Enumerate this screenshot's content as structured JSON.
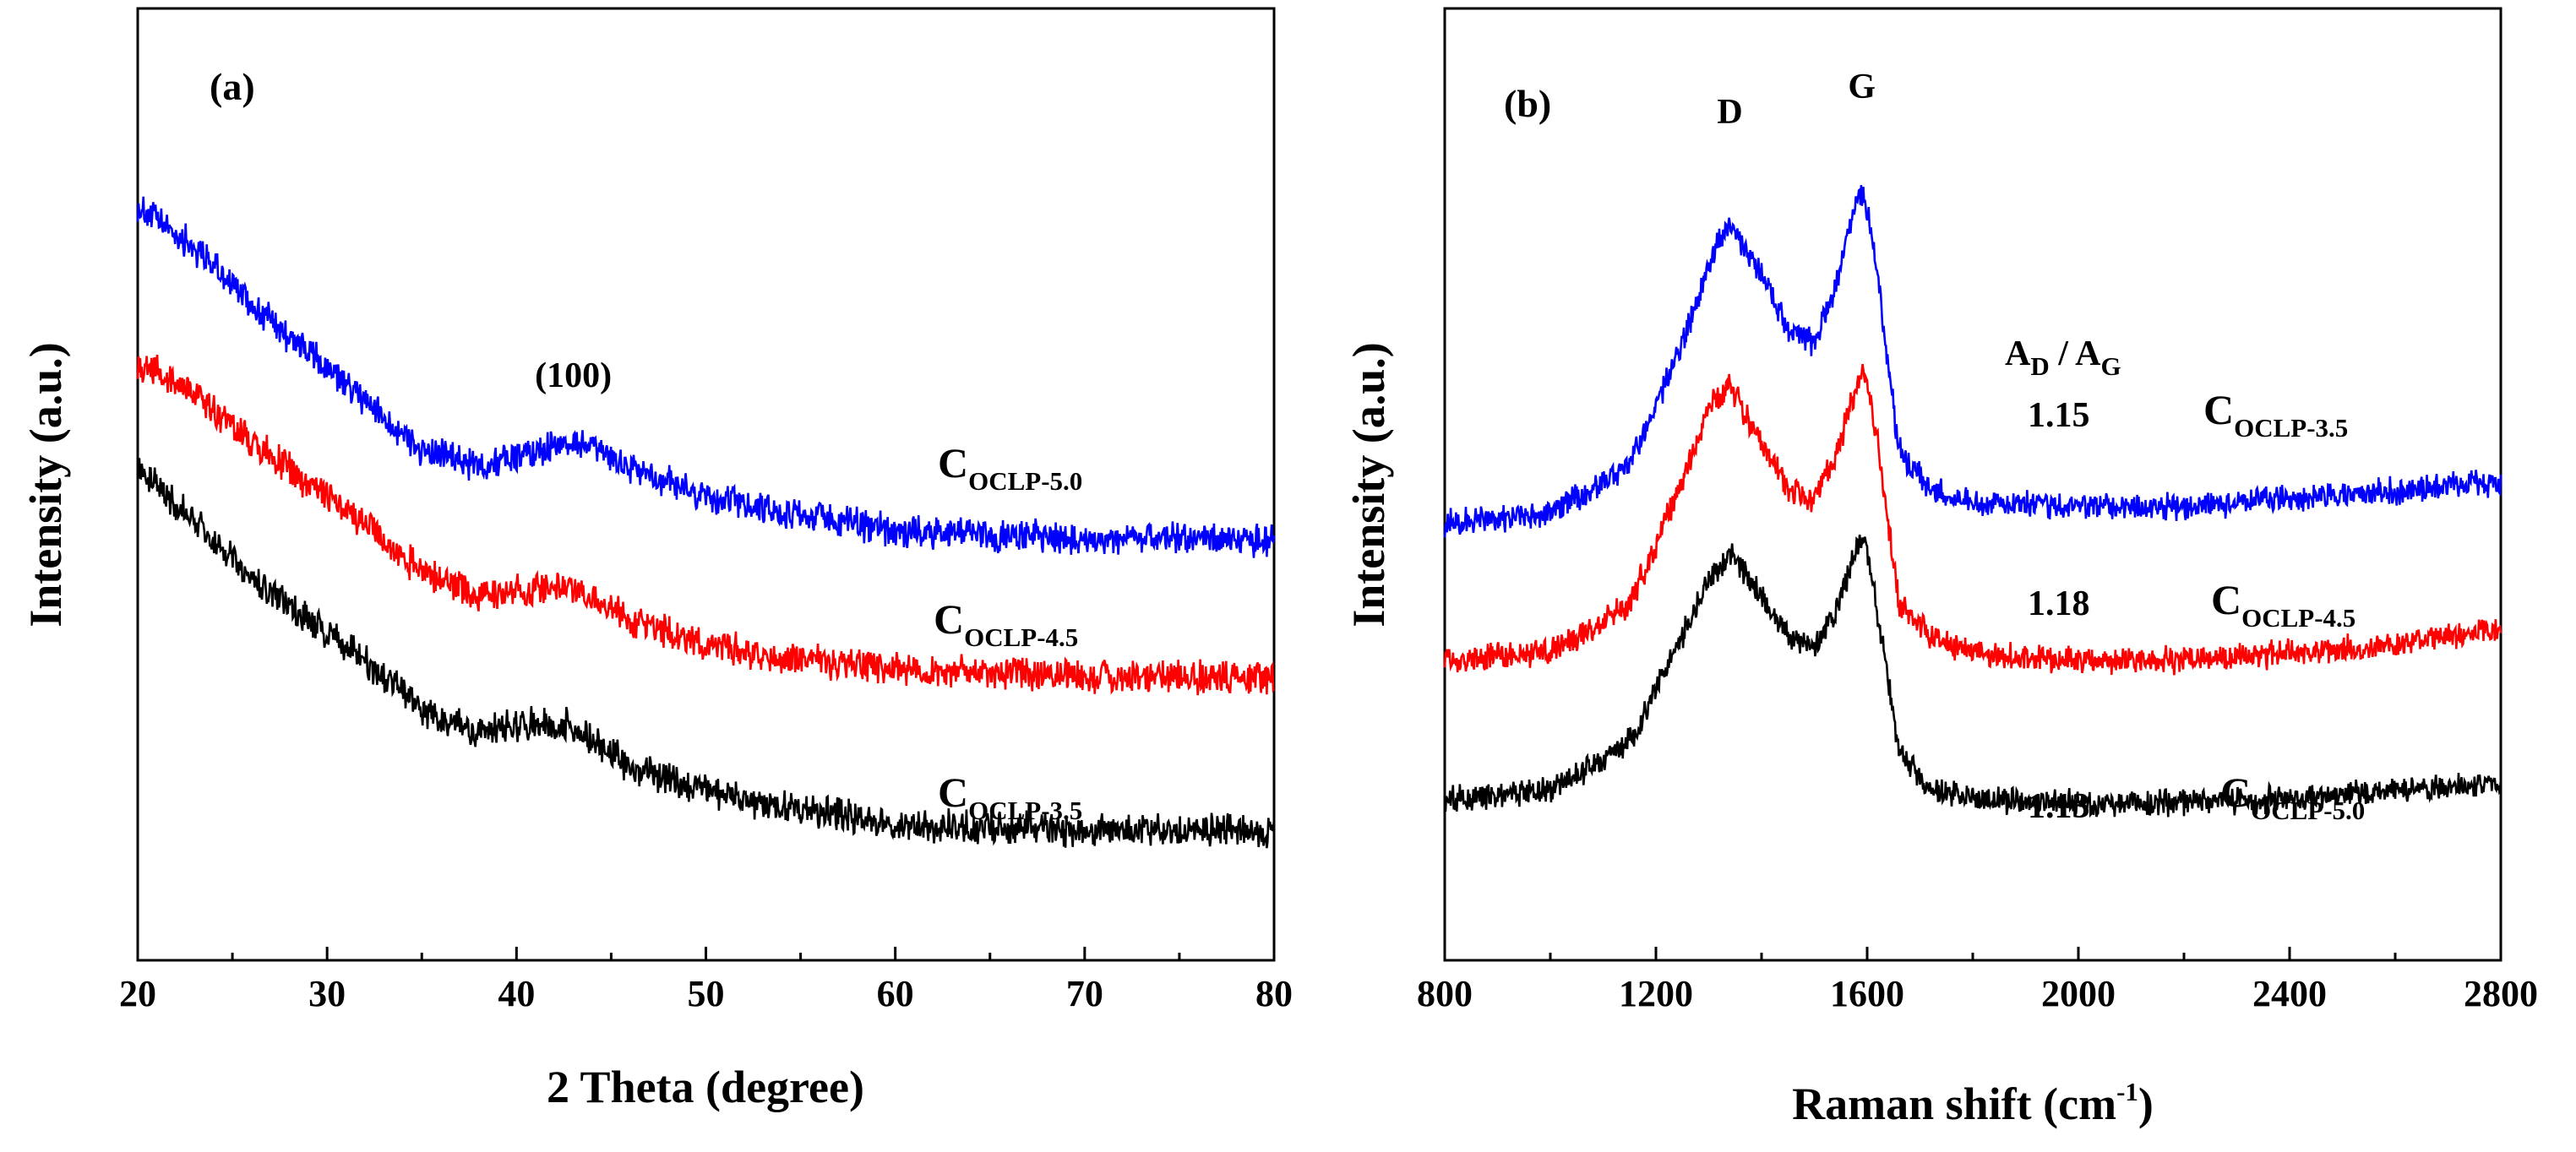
{
  "chart_data": [
    {
      "type": "line",
      "panel_label": "(a)",
      "title": "",
      "xlabel": "2 Theta (degree)",
      "ylabel": "Intensity (a.u.)",
      "xlim": [
        20,
        80
      ],
      "ylim": [
        0,
        100
      ],
      "x_ticks": [
        20,
        30,
        40,
        50,
        60,
        70,
        80
      ],
      "y_ticks_shown": false,
      "grid": false,
      "peak_annotation": {
        "text": "(100)",
        "x": 43
      },
      "series": [
        {
          "name": "C_OCLP-5.0",
          "label_main": "C",
          "label_sub": "OCLP-5.0",
          "color": "#0000ff",
          "noise": 1.6,
          "points": [
            [
              20,
              87
            ],
            [
              23,
              82
            ],
            [
              26,
              75
            ],
            [
              29,
              69
            ],
            [
              32,
              63
            ],
            [
              35,
              57
            ],
            [
              38,
              55
            ],
            [
              41,
              57
            ],
            [
              43,
              58
            ],
            [
              46,
              55
            ],
            [
              50,
              51
            ],
            [
              55,
              49
            ],
            [
              60,
              47
            ],
            [
              65,
              46.5
            ],
            [
              70,
              46
            ],
            [
              75,
              46
            ],
            [
              80,
              46
            ]
          ]
        },
        {
          "name": "C_OCLP-4.5",
          "label_main": "C",
          "label_sub": "OCLP-4.5",
          "color": "#ff0000",
          "noise": 1.6,
          "points": [
            [
              20,
              68
            ],
            [
              23,
              64
            ],
            [
              26,
              58
            ],
            [
              29,
              53
            ],
            [
              32,
              48
            ],
            [
              35,
              42
            ],
            [
              38,
              39
            ],
            [
              41,
              40
            ],
            [
              43,
              40
            ],
            [
              46,
              36
            ],
            [
              50,
              33
            ],
            [
              55,
              31
            ],
            [
              60,
              30
            ],
            [
              65,
              29.5
            ],
            [
              70,
              29
            ],
            [
              75,
              29
            ],
            [
              80,
              29
            ]
          ]
        },
        {
          "name": "C_OCLP-3.5",
          "label_main": "C",
          "label_sub": "OCLP-3.5",
          "color": "#000000",
          "noise": 1.6,
          "points": [
            [
              20,
              55
            ],
            [
              23,
              48
            ],
            [
              26,
              41
            ],
            [
              29,
              36
            ],
            [
              32,
              31
            ],
            [
              35,
              25
            ],
            [
              38,
              22
            ],
            [
              41,
              23.5
            ],
            [
              43,
              23
            ],
            [
              46,
              18
            ],
            [
              50,
              15
            ],
            [
              55,
              12.5
            ],
            [
              60,
              11
            ],
            [
              65,
              10.5
            ],
            [
              70,
              10
            ],
            [
              75,
              10
            ],
            [
              80,
              10
            ]
          ]
        }
      ]
    },
    {
      "type": "line",
      "panel_label": "(b)",
      "title": "",
      "xlabel": "Raman shift (cm",
      "xlabel_sup": "-1",
      "xlabel_end": ")",
      "ylabel": "Intensity (a.u.)",
      "xlim": [
        800,
        2800
      ],
      "ylim": [
        0,
        100
      ],
      "x_ticks": [
        800,
        1200,
        1600,
        2000,
        2400,
        2800
      ],
      "y_ticks_shown": false,
      "grid": false,
      "peak_labels": [
        {
          "text": "D",
          "x": 1340
        },
        {
          "text": "G",
          "x": 1590
        }
      ],
      "ratio_header": {
        "main_a": "A",
        "sub_a": "D",
        "sep": " / ",
        "main_b": "A",
        "sub_b": "G"
      },
      "series": [
        {
          "name": "C_OCLP-3.5",
          "label_main": "C",
          "label_sub": "OCLP-3.5",
          "ratio": "1.15",
          "color": "#0000ff",
          "noise": 1.3,
          "points": [
            [
              800,
              48
            ],
            [
              1000,
              49
            ],
            [
              1150,
              55
            ],
            [
              1250,
              70
            ],
            [
              1300,
              80
            ],
            [
              1340,
              85
            ],
            [
              1380,
              81
            ],
            [
              1450,
              72
            ],
            [
              1500,
              70
            ],
            [
              1540,
              77
            ],
            [
              1580,
              88
            ],
            [
              1595,
              89
            ],
            [
              1620,
              78
            ],
            [
              1660,
              57
            ],
            [
              1720,
              52
            ],
            [
              1800,
              50.5
            ],
            [
              2000,
              50
            ],
            [
              2200,
              50
            ],
            [
              2400,
              51
            ],
            [
              2600,
              52
            ],
            [
              2800,
              53
            ]
          ]
        },
        {
          "name": "C_OCLP-4.5",
          "label_main": "C",
          "label_sub": "OCLP-4.5",
          "ratio": "1.18",
          "color": "#ff0000",
          "noise": 1.3,
          "points": [
            [
              800,
              31
            ],
            [
              1000,
              32
            ],
            [
              1150,
              38
            ],
            [
              1250,
              53
            ],
            [
              1300,
              62
            ],
            [
              1340,
              65
            ],
            [
              1380,
              60
            ],
            [
              1450,
              52
            ],
            [
              1500,
              51
            ],
            [
              1540,
              56
            ],
            [
              1580,
              65
            ],
            [
              1595,
              67
            ],
            [
              1620,
              58
            ],
            [
              1660,
              38
            ],
            [
              1720,
              34
            ],
            [
              1800,
              32
            ],
            [
              2000,
              31
            ],
            [
              2200,
              31
            ],
            [
              2400,
              32
            ],
            [
              2600,
              33
            ],
            [
              2800,
              35
            ]
          ]
        },
        {
          "name": "C_OCLP-5.0",
          "label_main": "C",
          "label_sub": "OCLP-5.0",
          "ratio": "1.13",
          "color": "#000000",
          "noise": 1.3,
          "points": [
            [
              800,
              14
            ],
            [
              1000,
              15
            ],
            [
              1150,
              21
            ],
            [
              1250,
              34
            ],
            [
              1300,
              41
            ],
            [
              1340,
              44
            ],
            [
              1380,
              41
            ],
            [
              1450,
              34
            ],
            [
              1500,
              33
            ],
            [
              1540,
              37
            ],
            [
              1580,
              45
            ],
            [
              1595,
              46
            ],
            [
              1620,
              37
            ],
            [
              1660,
              20
            ],
            [
              1720,
              15
            ],
            [
              1800,
              14
            ],
            [
              2000,
              13.5
            ],
            [
              2200,
              13.5
            ],
            [
              2400,
              14
            ],
            [
              2600,
              15
            ],
            [
              2800,
              16
            ]
          ]
        }
      ]
    }
  ]
}
